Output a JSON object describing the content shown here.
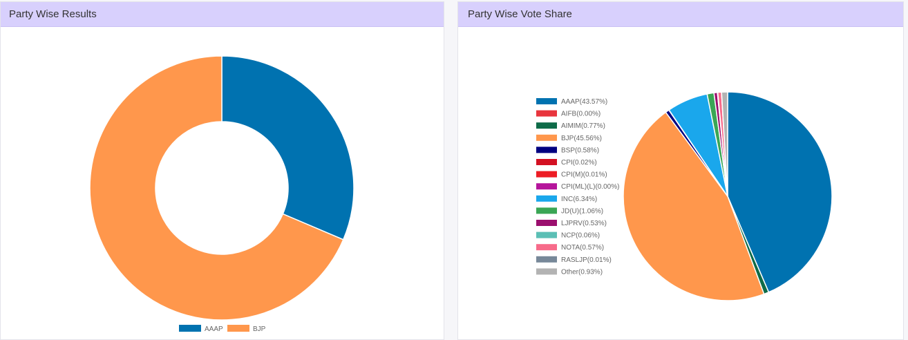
{
  "panels": {
    "results": {
      "title": "Party Wise Results"
    },
    "share": {
      "title": "Party Wise Vote Share"
    }
  },
  "chart_data": [
    {
      "type": "pie",
      "subtype": "doughnut",
      "categories": [
        "AAAP",
        "BJP"
      ],
      "values": [
        31.4,
        68.6
      ],
      "colors": [
        "#0072b0",
        "#ff974c"
      ],
      "legend": "bottom"
    },
    {
      "type": "pie",
      "categories": [
        "AAAP",
        "AIFB",
        "AIMIM",
        "BJP",
        "BSP",
        "CPI",
        "CPI(M)",
        "CPI(ML)(L)",
        "INC",
        "JD(U)",
        "LJPRV",
        "NCP",
        "NOTA",
        "RASLJP",
        "Other"
      ],
      "labels": [
        "AAAP(43.57%)",
        "AIFB(0.00%)",
        "AIMIM(0.77%)",
        "BJP(45.56%)",
        "BSP(0.58%)",
        "CPI(0.02%)",
        "CPI(M)(0.01%)",
        "CPI(ML)(L)(0.00%)",
        "INC(6.34%)",
        "JD(U)(1.06%)",
        "LJPRV(0.53%)",
        "NCP(0.06%)",
        "NOTA(0.57%)",
        "RASLJP(0.01%)",
        "Other(0.93%)"
      ],
      "values": [
        43.57,
        0.0,
        0.77,
        45.56,
        0.58,
        0.02,
        0.01,
        0.0,
        6.34,
        1.06,
        0.53,
        0.06,
        0.57,
        0.01,
        0.93
      ],
      "colors": [
        "#0072b0",
        "#e8353d",
        "#0e6b48",
        "#ff974c",
        "#000080",
        "#d31122",
        "#ed1c24",
        "#b5159b",
        "#1aa7ec",
        "#3aa655",
        "#9b0f6e",
        "#5bbfb5",
        "#f76b8a",
        "#778899",
        "#b3b3b3"
      ],
      "legend": "left"
    }
  ]
}
